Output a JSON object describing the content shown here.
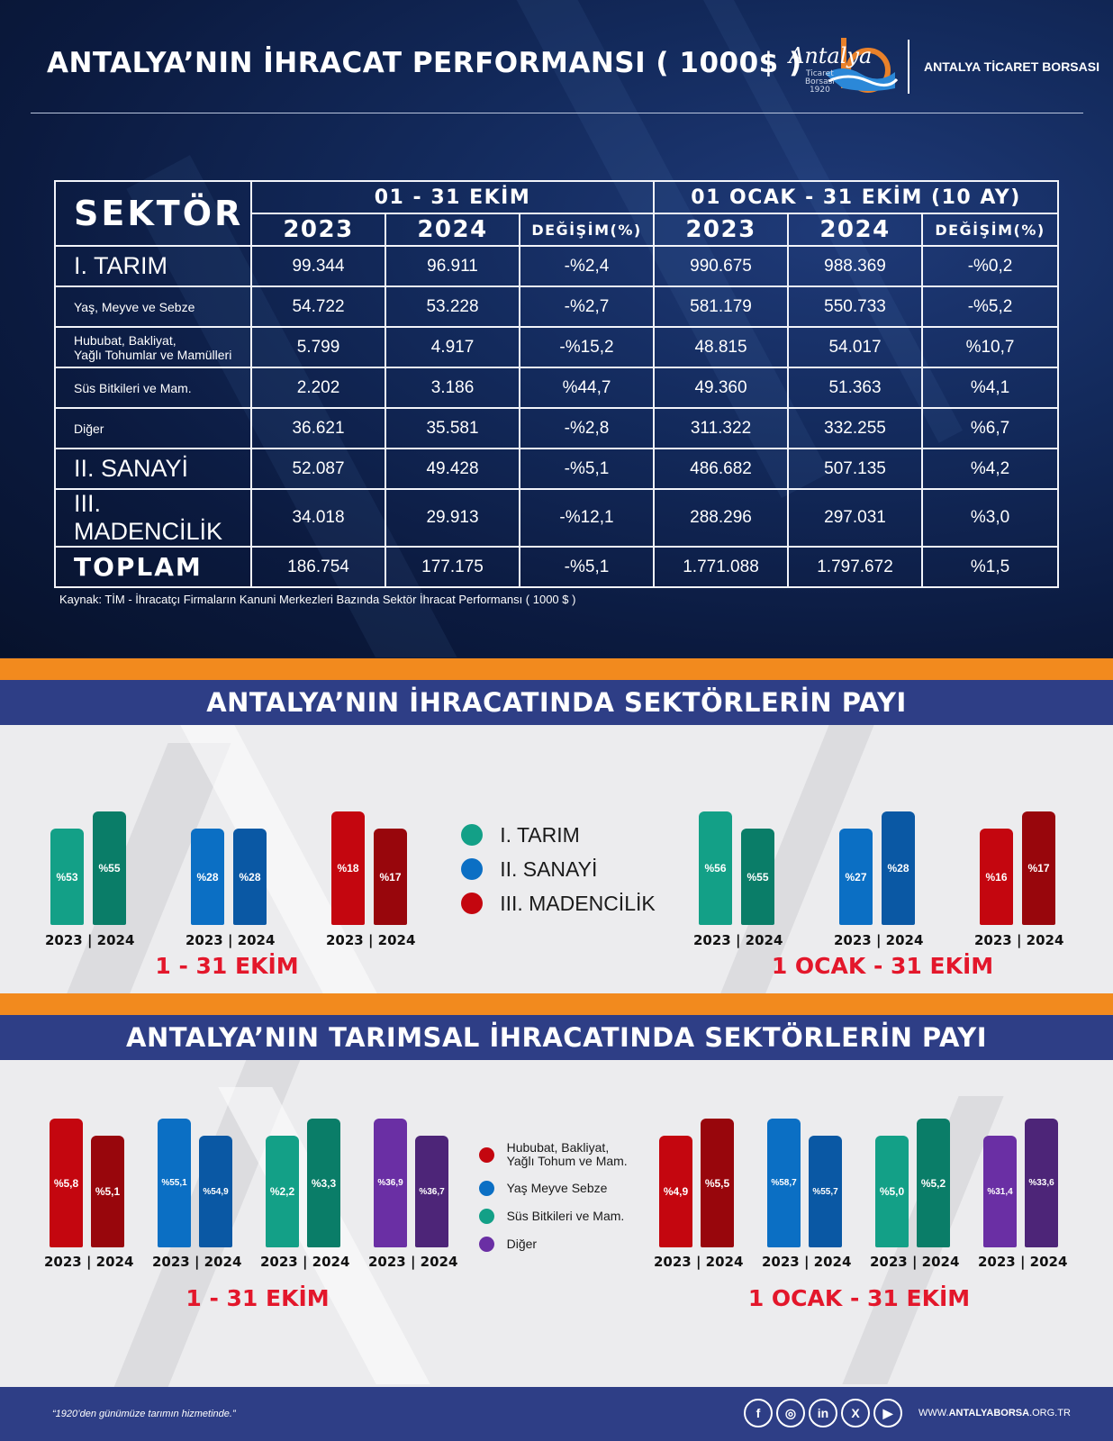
{
  "header": {
    "title": "ANTALYA’NIN İHRACAT PERFORMANSI ( 1000$ )",
    "logo_script": "Antalya",
    "logo_sub1": "Ticaret",
    "logo_sub2": "Borsası",
    "logo_sub3": "1920",
    "org_name": "ANTALYA TİCARET BORSASI"
  },
  "table": {
    "sector_header": "SEKTÖR",
    "group1": "01 - 31 EKİM",
    "group2": "01 OCAK - 31 EKİM (10 AY)",
    "col_2023": "2023",
    "col_2024": "2024",
    "col_change": "DEĞİŞİM(%)",
    "rows": [
      {
        "label": "I. TARIM",
        "style": "big",
        "values": [
          "99.344",
          "96.911",
          "-%2,4",
          "990.675",
          "988.369",
          "-%0,2"
        ]
      },
      {
        "label": "Yaş, Meyve ve Sebze",
        "style": "small",
        "values": [
          "54.722",
          "53.228",
          "-%2,7",
          "581.179",
          "550.733",
          "-%5,2"
        ]
      },
      {
        "label": "Hububat, Bakliyat,\nYağlı Tohumlar ve Mamülleri",
        "style": "small",
        "values": [
          "5.799",
          "4.917",
          "-%15,2",
          "48.815",
          "54.017",
          "%10,7"
        ]
      },
      {
        "label": "Süs Bitkileri ve Mam.",
        "style": "small",
        "values": [
          "2.202",
          "3.186",
          "%44,7",
          "49.360",
          "51.363",
          "%4,1"
        ]
      },
      {
        "label": "Diğer",
        "style": "small",
        "values": [
          "36.621",
          "35.581",
          "-%2,8",
          "311.322",
          "332.255",
          "%6,7"
        ]
      },
      {
        "label": "II. SANAYİ",
        "style": "big",
        "values": [
          "52.087",
          "49.428",
          "-%5,1",
          "486.682",
          "507.135",
          "%4,2"
        ]
      },
      {
        "label": "III. MADENCİLİK",
        "style": "big",
        "values": [
          "34.018",
          "29.913",
          "-%12,1",
          "288.296",
          "297.031",
          "%3,0"
        ]
      },
      {
        "label": "TOPLAM",
        "style": "toplam",
        "values": [
          "186.754",
          "177.175",
          "-%5,1",
          "1.771.088",
          "1.797.672",
          "%1,5"
        ]
      }
    ],
    "source": "Kaynak: TİM - İhracatçı Firmaların Kanuni Merkezleri Bazında Sektör İhracat Performansı ( 1000 $ )"
  },
  "section1": {
    "title": "ANTALYA’NIN İHRACATINDA SEKTÖRLERİN PAYI",
    "period_left": "1 - 31 EKİM",
    "period_right": "1 OCAK - 31 EKİM",
    "years_label": "2023 | 2024",
    "legend": [
      {
        "label": "I. TARIM",
        "color": "#13a087"
      },
      {
        "label": "II. SANAYİ",
        "color": "#0b6fc4"
      },
      {
        "label": "III. MADENCİLİK",
        "color": "#c4060f"
      }
    ],
    "groups_left": [
      {
        "color23": "#13a087",
        "color24": "#0a7d68",
        "v23": 53,
        "v24": 55,
        "t23": "%53",
        "t24": "%55"
      },
      {
        "color23": "#0b6fc4",
        "color24": "#0a58a4",
        "v23": 28,
        "v24": 28,
        "t23": "%28",
        "t24": "%28"
      },
      {
        "color23": "#c4060f",
        "color24": "#98060c",
        "v23": 18,
        "v24": 17,
        "t23": "%18",
        "t24": "%17"
      }
    ],
    "groups_right": [
      {
        "color23": "#13a087",
        "color24": "#0a7d68",
        "v23": 56,
        "v24": 55,
        "t23": "%56",
        "t24": "%55"
      },
      {
        "color23": "#0b6fc4",
        "color24": "#0a58a4",
        "v23": 27,
        "v24": 28,
        "t23": "%27",
        "t24": "%28"
      },
      {
        "color23": "#c4060f",
        "color24": "#98060c",
        "v23": 16,
        "v24": 17,
        "t23": "%16",
        "t24": "%17"
      }
    ]
  },
  "section2": {
    "title": "ANTALYA’NIN TARIMSAL İHRACATINDA SEKTÖRLERİN PAYI",
    "period_left": "1 - 31 EKİM",
    "period_right": "1 OCAK - 31 EKİM",
    "years_label": "2023 | 2024",
    "legend": [
      {
        "label": "Hububat, Bakliyat,\nYağlı Tohum ve Mam.",
        "color": "#c4060f"
      },
      {
        "label": "Yaş Meyve Sebze",
        "color": "#0b6fc4"
      },
      {
        "label": "Süs Bitkileri ve Mam.",
        "color": "#13a087"
      },
      {
        "label": "Diğer",
        "color": "#6a2fa4"
      }
    ],
    "groups_left": [
      {
        "color23": "#c4060f",
        "color24": "#98060c",
        "v23": 5.8,
        "v24": 5.1,
        "t23": "%5,8",
        "t24": "%5,1"
      },
      {
        "color23": "#0b6fc4",
        "color24": "#0a58a4",
        "v23": 55.1,
        "v24": 54.9,
        "t23": "%55,1",
        "t24": "%54,9"
      },
      {
        "color23": "#13a087",
        "color24": "#0a7d68",
        "v23": 2.2,
        "v24": 3.3,
        "t23": "%2,2",
        "t24": "%3,3"
      },
      {
        "color23": "#6a2fa4",
        "color24": "#4d2578",
        "v23": 36.9,
        "v24": 36.7,
        "t23": "%36,9",
        "t24": "%36,7"
      }
    ],
    "groups_right": [
      {
        "color23": "#c4060f",
        "color24": "#98060c",
        "v23": 4.9,
        "v24": 5.5,
        "t23": "%4,9",
        "t24": "%5,5"
      },
      {
        "color23": "#0b6fc4",
        "color24": "#0a58a4",
        "v23": 58.7,
        "v24": 55.7,
        "t23": "%58,7",
        "t24": "%55,7"
      },
      {
        "color23": "#13a087",
        "color24": "#0a7d68",
        "v23": 5.0,
        "v24": 5.2,
        "t23": "%5,0",
        "t24": "%5,2"
      },
      {
        "color23": "#6a2fa4",
        "color24": "#4d2578",
        "v23": 31.4,
        "v24": 33.6,
        "t23": "%31,4",
        "t24": "%33,6"
      }
    ]
  },
  "footer": {
    "motto": "“1920’den günümüze tarımın hizmetinde.”",
    "social": [
      {
        "icon": "facebook-icon",
        "glyph": "f"
      },
      {
        "icon": "instagram-icon",
        "glyph": "◎"
      },
      {
        "icon": "linkedin-icon",
        "glyph": "in"
      },
      {
        "icon": "x-icon",
        "glyph": "X"
      },
      {
        "icon": "youtube-icon",
        "glyph": "▶"
      }
    ],
    "site_pre": "WWW.",
    "site_bold": "ANTALYABORSA",
    "site_post": ".ORG.TR"
  }
}
